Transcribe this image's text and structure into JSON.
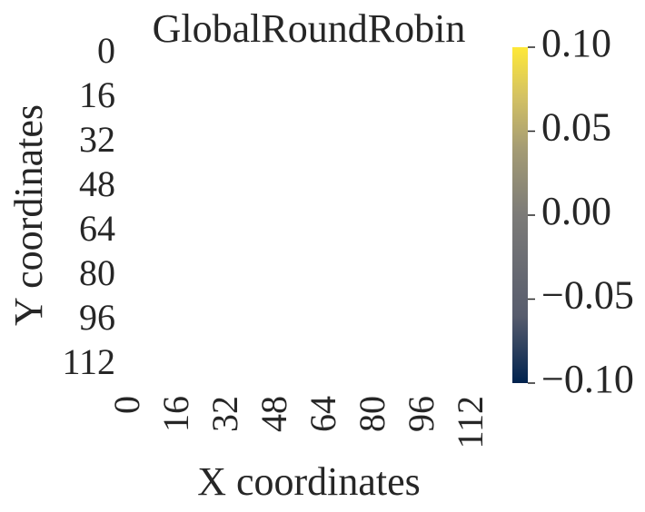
{
  "chart_data": {
    "type": "heatmap",
    "title": "GlobalRoundRobin",
    "xlabel": "X coordinates",
    "ylabel": "Y coordinates",
    "x_ticks": [
      "0",
      "16",
      "32",
      "48",
      "64",
      "80",
      "96",
      "112"
    ],
    "y_ticks": [
      "0",
      "16",
      "32",
      "48",
      "64",
      "80",
      "96",
      "112"
    ],
    "values": [],
    "colormap": "cividis",
    "colorbar": {
      "ticks": [
        "0.10",
        "0.05",
        "0.00",
        "−0.05",
        "−0.10"
      ],
      "range": [
        -0.1,
        0.1
      ],
      "colors": [
        "#00224e",
        "#575c6d",
        "#7c7b78",
        "#a59c74",
        "#d3c164",
        "#fee838"
      ]
    },
    "grid": false
  }
}
